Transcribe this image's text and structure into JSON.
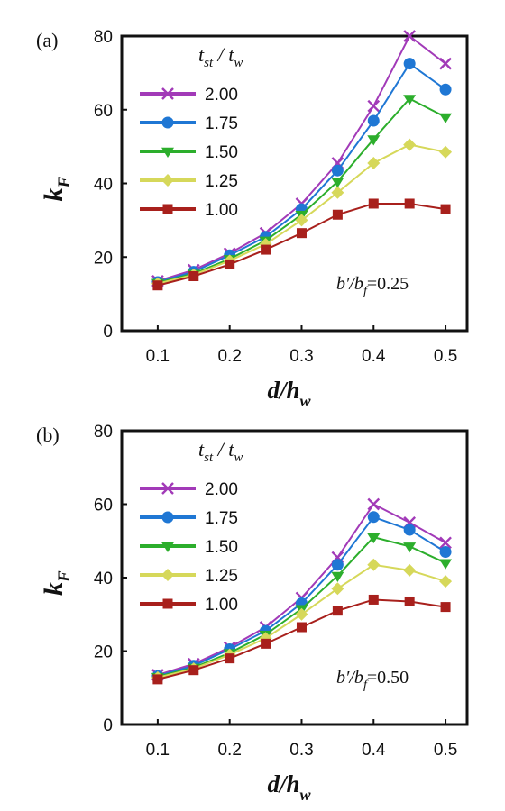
{
  "chart_data": [
    {
      "type": "line",
      "panel_label": "(a)",
      "xlabel": "d/h",
      "xlabel_sub": "w",
      "ylabel": "k",
      "ylabel_sub": "F",
      "x": [
        0.1,
        0.15,
        0.2,
        0.25,
        0.3,
        0.35,
        0.4,
        0.45,
        0.5
      ],
      "xticks": [
        0.1,
        0.2,
        0.3,
        0.4,
        0.5
      ],
      "yticks": [
        0,
        20,
        40,
        60,
        80
      ],
      "xlim": [
        0.05,
        0.53
      ],
      "ylim": [
        0,
        80
      ],
      "grid": false,
      "legend_title": "t_st / t_w",
      "legend_position": "top-left",
      "annotation": "b′/b_f=0.25",
      "series": [
        {
          "name": "2.00",
          "color": "#a23ab8",
          "marker": "x",
          "values": [
            13.5,
            16.5,
            21.0,
            26.5,
            34.5,
            45.5,
            61.0,
            80.0,
            72.5
          ]
        },
        {
          "name": "1.75",
          "color": "#1f77d4",
          "marker": "circle",
          "values": [
            13.2,
            16.0,
            20.5,
            25.5,
            33.0,
            43.5,
            57.0,
            72.5,
            65.5
          ]
        },
        {
          "name": "1.50",
          "color": "#2cae2c",
          "marker": "triangle-down",
          "values": [
            13.0,
            15.5,
            19.5,
            24.5,
            31.5,
            40.5,
            52.0,
            63.0,
            58.0
          ]
        },
        {
          "name": "1.25",
          "color": "#d6d85a",
          "marker": "diamond",
          "values": [
            12.8,
            15.2,
            19.0,
            23.5,
            30.0,
            37.5,
            45.5,
            50.5,
            48.5
          ]
        },
        {
          "name": "1.00",
          "color": "#a8201c",
          "marker": "square",
          "values": [
            12.3,
            14.8,
            18.0,
            22.0,
            26.5,
            31.5,
            34.5,
            34.5,
            33.0
          ]
        }
      ]
    },
    {
      "type": "line",
      "panel_label": "(b)",
      "xlabel": "d/h",
      "xlabel_sub": "w",
      "ylabel": "k",
      "ylabel_sub": "F",
      "x": [
        0.1,
        0.15,
        0.2,
        0.25,
        0.3,
        0.35,
        0.4,
        0.45,
        0.5
      ],
      "xticks": [
        0.1,
        0.2,
        0.3,
        0.4,
        0.5
      ],
      "yticks": [
        0,
        20,
        40,
        60,
        80
      ],
      "xlim": [
        0.05,
        0.53
      ],
      "ylim": [
        0,
        80
      ],
      "grid": false,
      "legend_title": "t_st / t_w",
      "legend_position": "top-left",
      "annotation": "b′/b_f=0.50",
      "series": [
        {
          "name": "2.00",
          "color": "#a23ab8",
          "marker": "x",
          "values": [
            13.5,
            16.5,
            21.0,
            26.5,
            34.5,
            45.5,
            60.0,
            55.0,
            49.5
          ]
        },
        {
          "name": "1.75",
          "color": "#1f77d4",
          "marker": "circle",
          "values": [
            13.2,
            16.0,
            20.5,
            25.5,
            33.0,
            43.5,
            56.5,
            53.0,
            47.0
          ]
        },
        {
          "name": "1.50",
          "color": "#2cae2c",
          "marker": "triangle-down",
          "values": [
            13.0,
            15.5,
            19.5,
            24.5,
            31.5,
            40.5,
            51.0,
            48.5,
            44.0
          ]
        },
        {
          "name": "1.25",
          "color": "#d6d85a",
          "marker": "diamond",
          "values": [
            12.8,
            15.2,
            19.0,
            23.5,
            30.0,
            37.0,
            43.5,
            42.0,
            39.0
          ]
        },
        {
          "name": "1.00",
          "color": "#a8201c",
          "marker": "square",
          "values": [
            12.3,
            14.8,
            18.0,
            22.0,
            26.5,
            31.0,
            34.0,
            33.5,
            32.0
          ]
        }
      ]
    }
  ]
}
